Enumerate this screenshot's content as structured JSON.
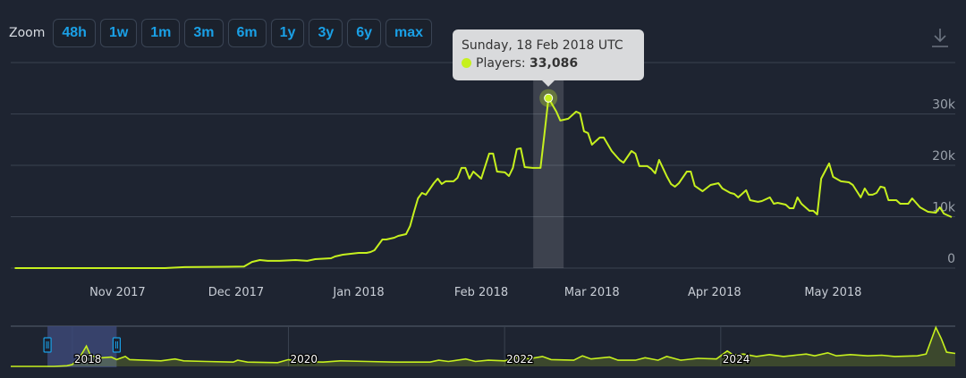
{
  "zoom": {
    "label": "Zoom",
    "buttons": [
      "48h",
      "1w",
      "1m",
      "3m",
      "6m",
      "1y",
      "3y",
      "6y",
      "max"
    ]
  },
  "tooltip": {
    "date": "Sunday, 18 Feb 2018 UTC",
    "series_label": "Players:",
    "value": "33,086"
  },
  "colors": {
    "line": "#c6f01e",
    "background": "#1e2431",
    "button_text": "#1aa0e6",
    "grid": "#3a4250",
    "navigator_selection": "#3d4a7a"
  },
  "icons": {
    "download": "download-icon"
  },
  "chart_data": {
    "type": "line",
    "title": "",
    "xlabel": "",
    "ylabel": "Players",
    "x_unit": "days since 2018-01-01",
    "xlim": [
      -87,
      151
    ],
    "ylim": [
      0,
      40000
    ],
    "grid": true,
    "yticks": [
      {
        "value": 0,
        "label": "0"
      },
      {
        "value": 10000,
        "label": "10k"
      },
      {
        "value": 20000,
        "label": "20k"
      },
      {
        "value": 30000,
        "label": "30k"
      },
      {
        "value": 40000,
        "label": ""
      }
    ],
    "xticks": [
      {
        "day": -61,
        "label": "Nov 2017"
      },
      {
        "day": -31,
        "label": "Dec 2017"
      },
      {
        "day": 0,
        "label": "Jan 2018"
      },
      {
        "day": 31,
        "label": "Feb 2018"
      },
      {
        "day": 59,
        "label": "Mar 2018"
      },
      {
        "day": 90,
        "label": "Apr 2018"
      },
      {
        "day": 120,
        "label": "May 2018"
      }
    ],
    "highlight": {
      "day": 48,
      "value": 33086
    },
    "series": [
      {
        "name": "Players",
        "points": [
          [
            -87,
            0
          ],
          [
            -49,
            0
          ],
          [
            -44,
            200
          ],
          [
            -29,
            300
          ],
          [
            -27,
            1200
          ],
          [
            -25,
            1570
          ],
          [
            -23,
            1400
          ],
          [
            -20,
            1400
          ],
          [
            -16,
            1570
          ],
          [
            -13,
            1400
          ],
          [
            -11,
            1740
          ],
          [
            -7,
            1910
          ],
          [
            -6,
            2260
          ],
          [
            -4,
            2610
          ],
          [
            0,
            2960
          ],
          [
            2,
            2960
          ],
          [
            3,
            3130
          ],
          [
            4,
            3480
          ],
          [
            5,
            4520
          ],
          [
            6,
            5570
          ],
          [
            7,
            5570
          ],
          [
            9,
            5920
          ],
          [
            10,
            6260
          ],
          [
            11,
            6440
          ],
          [
            12,
            6610
          ],
          [
            13,
            8180
          ],
          [
            14,
            10960
          ],
          [
            15,
            13570
          ],
          [
            16,
            14620
          ],
          [
            17,
            14270
          ],
          [
            19,
            16530
          ],
          [
            20,
            17400
          ],
          [
            21,
            16360
          ],
          [
            22,
            16880
          ],
          [
            24,
            16880
          ],
          [
            25,
            17570
          ],
          [
            26,
            19490
          ],
          [
            27,
            19490
          ],
          [
            28,
            17400
          ],
          [
            29,
            18790
          ],
          [
            31,
            17400
          ],
          [
            33,
            22270
          ],
          [
            34,
            22270
          ],
          [
            35,
            18790
          ],
          [
            37,
            18620
          ],
          [
            38,
            17920
          ],
          [
            39,
            19490
          ],
          [
            40,
            23140
          ],
          [
            41,
            23310
          ],
          [
            42,
            19660
          ],
          [
            44,
            19490
          ],
          [
            46,
            19490
          ],
          [
            47,
            26100
          ],
          [
            48,
            33086
          ],
          [
            50,
            30450
          ],
          [
            51,
            28710
          ],
          [
            53,
            29060
          ],
          [
            55,
            30450
          ],
          [
            56,
            30100
          ],
          [
            57,
            26620
          ],
          [
            58,
            26270
          ],
          [
            59,
            24010
          ],
          [
            61,
            25400
          ],
          [
            62,
            25400
          ],
          [
            64,
            22790
          ],
          [
            66,
            21050
          ],
          [
            67,
            20530
          ],
          [
            69,
            22790
          ],
          [
            70,
            22270
          ],
          [
            71,
            19840
          ],
          [
            73,
            19840
          ],
          [
            74,
            19310
          ],
          [
            75,
            18440
          ],
          [
            76,
            21050
          ],
          [
            78,
            17750
          ],
          [
            79,
            16360
          ],
          [
            80,
            15840
          ],
          [
            81,
            16530
          ],
          [
            83,
            18790
          ],
          [
            84,
            18790
          ],
          [
            85,
            16010
          ],
          [
            87,
            14960
          ],
          [
            89,
            16180
          ],
          [
            91,
            16530
          ],
          [
            92,
            15490
          ],
          [
            94,
            14620
          ],
          [
            95,
            14440
          ],
          [
            96,
            13750
          ],
          [
            98,
            15140
          ],
          [
            99,
            13220
          ],
          [
            101,
            12880
          ],
          [
            102,
            13050
          ],
          [
            104,
            13750
          ],
          [
            105,
            12530
          ],
          [
            106,
            12700
          ],
          [
            108,
            12350
          ],
          [
            109,
            11660
          ],
          [
            110,
            11660
          ],
          [
            111,
            13750
          ],
          [
            112,
            12530
          ],
          [
            113,
            11830
          ],
          [
            114,
            11140
          ],
          [
            115,
            11140
          ],
          [
            116,
            10440
          ],
          [
            117,
            17400
          ],
          [
            119,
            20360
          ],
          [
            120,
            17750
          ],
          [
            122,
            16880
          ],
          [
            124,
            16700
          ],
          [
            125,
            16180
          ],
          [
            127,
            13750
          ],
          [
            128,
            15490
          ],
          [
            129,
            14270
          ],
          [
            130,
            14270
          ],
          [
            131,
            14620
          ],
          [
            132,
            15840
          ],
          [
            133,
            15660
          ],
          [
            134,
            13220
          ],
          [
            136,
            13220
          ],
          [
            137,
            12530
          ],
          [
            139,
            12530
          ],
          [
            140,
            13570
          ],
          [
            141,
            12700
          ],
          [
            142,
            11830
          ],
          [
            144,
            10960
          ],
          [
            146,
            10790
          ],
          [
            147,
            11830
          ],
          [
            148,
            10610
          ],
          [
            150,
            9920
          ]
        ]
      }
    ],
    "navigator": {
      "x_unit": "year",
      "xlim": [
        2017.43,
        2026.17
      ],
      "ylim": [
        0,
        65000
      ],
      "year_labels": [
        {
          "year": 2018,
          "label": "2018"
        },
        {
          "year": 2020,
          "label": "2020"
        },
        {
          "year": 2022,
          "label": "2022"
        },
        {
          "year": 2024,
          "label": "2024"
        }
      ],
      "selection": [
        2017.77,
        2018.41
      ],
      "points": [
        [
          2017.43,
          0
        ],
        [
          2017.83,
          0
        ],
        [
          2017.95,
          1000
        ],
        [
          2018.0,
          3000
        ],
        [
          2018.07,
          15000
        ],
        [
          2018.13,
          33000
        ],
        [
          2018.17,
          17000
        ],
        [
          2018.28,
          14000
        ],
        [
          2018.36,
          15000
        ],
        [
          2018.41,
          11000
        ],
        [
          2018.49,
          16000
        ],
        [
          2018.53,
          11000
        ],
        [
          2018.66,
          10000
        ],
        [
          2018.82,
          9000
        ],
        [
          2018.95,
          12000
        ],
        [
          2019.03,
          9000
        ],
        [
          2019.24,
          8000
        ],
        [
          2019.49,
          7000
        ],
        [
          2019.53,
          10000
        ],
        [
          2019.62,
          7000
        ],
        [
          2019.9,
          6000
        ],
        [
          2020.0,
          11000
        ],
        [
          2020.07,
          8000
        ],
        [
          2020.32,
          7000
        ],
        [
          2020.48,
          9000
        ],
        [
          2020.73,
          8000
        ],
        [
          2020.98,
          7000
        ],
        [
          2021.31,
          7000
        ],
        [
          2021.39,
          10000
        ],
        [
          2021.48,
          8000
        ],
        [
          2021.64,
          12000
        ],
        [
          2021.73,
          8000
        ],
        [
          2021.85,
          10000
        ],
        [
          2022.0,
          9000
        ],
        [
          2022.18,
          17000
        ],
        [
          2022.22,
          12000
        ],
        [
          2022.35,
          16000
        ],
        [
          2022.43,
          11000
        ],
        [
          2022.64,
          10000
        ],
        [
          2022.72,
          17000
        ],
        [
          2022.8,
          12000
        ],
        [
          2022.97,
          15000
        ],
        [
          2023.05,
          10000
        ],
        [
          2023.21,
          10000
        ],
        [
          2023.3,
          14000
        ],
        [
          2023.42,
          10000
        ],
        [
          2023.5,
          16000
        ],
        [
          2023.63,
          10000
        ],
        [
          2023.79,
          13000
        ],
        [
          2023.96,
          12000
        ],
        [
          2024.06,
          25000
        ],
        [
          2024.12,
          18000
        ],
        [
          2024.21,
          20000
        ],
        [
          2024.33,
          16000
        ],
        [
          2024.45,
          19000
        ],
        [
          2024.58,
          16000
        ],
        [
          2024.79,
          20000
        ],
        [
          2024.87,
          17000
        ],
        [
          2024.99,
          22000
        ],
        [
          2025.07,
          17000
        ],
        [
          2025.2,
          19000
        ],
        [
          2025.36,
          17000
        ],
        [
          2025.49,
          18000
        ],
        [
          2025.61,
          16000
        ],
        [
          2025.82,
          17000
        ],
        [
          2025.9,
          20000
        ],
        [
          2025.99,
          63000
        ],
        [
          2026.04,
          45000
        ],
        [
          2026.09,
          23000
        ],
        [
          2026.17,
          21000
        ]
      ]
    }
  }
}
